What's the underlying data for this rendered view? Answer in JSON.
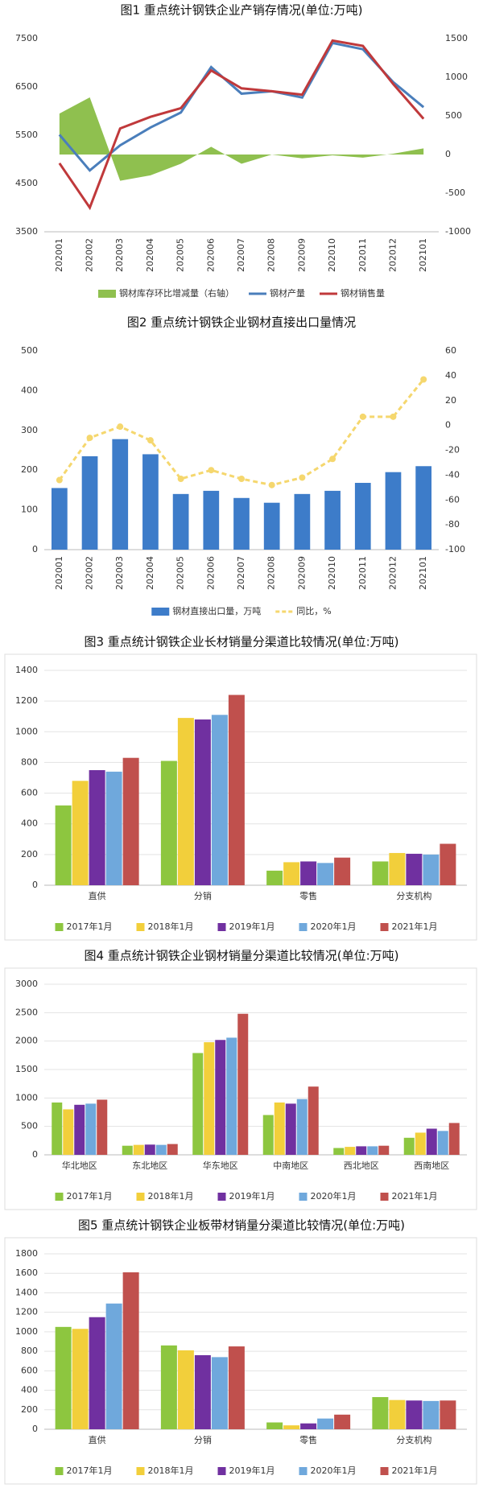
{
  "chart_data": [
    {
      "type": "combo",
      "title": "图1 重点统计钢铁企业产销存情况(单位:万吨)",
      "categories": [
        "202001",
        "202002",
        "202003",
        "202004",
        "202005",
        "202006",
        "202007",
        "202008",
        "202009",
        "202010",
        "202011",
        "202012",
        "202101"
      ],
      "ylim": [
        3500,
        7500
      ],
      "yticks": [
        3500,
        4500,
        5500,
        6500,
        7500
      ],
      "y2lim": [
        -1000,
        1500
      ],
      "y2ticks": [
        -1000,
        -500,
        0,
        500,
        1000,
        1500
      ],
      "series": [
        {
          "name": "钢材库存环比增减量（右轴）",
          "type": "area",
          "axis": "y2",
          "color": "#8fc04f",
          "values": [
            530,
            740,
            -340,
            -270,
            -120,
            100,
            -120,
            0,
            -50,
            -10,
            -40,
            10,
            80
          ]
        },
        {
          "name": "钢材产量",
          "type": "line",
          "color": "#4a7ebb",
          "values": [
            5510,
            4770,
            5290,
            5660,
            5970,
            6910,
            6360,
            6410,
            6280,
            7410,
            7280,
            6600,
            6080
          ]
        },
        {
          "name": "钢材销售量",
          "type": "line",
          "color": "#c0393b",
          "values": [
            4920,
            4000,
            5640,
            5880,
            6060,
            6840,
            6470,
            6410,
            6340,
            7460,
            7350,
            6560,
            5840
          ]
        }
      ]
    },
    {
      "type": "combo",
      "title": "图2 重点统计钢铁企业钢材直接出口量情况",
      "categories": [
        "202001",
        "202002",
        "202003",
        "202004",
        "202005",
        "202006",
        "202007",
        "202008",
        "202009",
        "202010",
        "202011",
        "202012",
        "202101"
      ],
      "ylim": [
        0,
        500
      ],
      "yticks": [
        0,
        100,
        200,
        300,
        400,
        500
      ],
      "y2lim": [
        -100,
        60
      ],
      "y2ticks": [
        -100,
        -80,
        -60,
        -40,
        -20,
        0,
        20,
        40,
        60
      ],
      "series": [
        {
          "name": "钢材直接出口量，万吨",
          "type": "bar",
          "color": "#3d7cc9",
          "values": [
            155,
            235,
            278,
            240,
            140,
            148,
            130,
            118,
            140,
            148,
            168,
            195,
            210
          ]
        },
        {
          "name": "同比，%",
          "type": "line",
          "axis": "y2",
          "color": "#f5d76e",
          "line_style": "dashed",
          "markers": true,
          "values": [
            -44,
            -10,
            -1,
            -12,
            -43,
            -36,
            -43,
            -48,
            -42,
            -27,
            7,
            7,
            37
          ]
        }
      ]
    },
    {
      "type": "bar",
      "title": "图3 重点统计钢铁企业长材销量分渠道比较情况(单位:万吨)",
      "grid": true,
      "categories": [
        "直供",
        "分销",
        "零售",
        "分支机构"
      ],
      "ylim": [
        0,
        1400
      ],
      "yticks": [
        0,
        200,
        400,
        600,
        800,
        1000,
        1200,
        1400
      ],
      "series": [
        {
          "name": "2017年1月",
          "color": "#8dc63f",
          "values": [
            520,
            810,
            95,
            155
          ]
        },
        {
          "name": "2018年1月",
          "color": "#f2cf3b",
          "values": [
            680,
            1090,
            150,
            210
          ]
        },
        {
          "name": "2019年1月",
          "color": "#7030a0",
          "values": [
            750,
            1080,
            155,
            205
          ]
        },
        {
          "name": "2020年1月",
          "color": "#6fa8dc",
          "values": [
            740,
            1110,
            145,
            200
          ]
        },
        {
          "name": "2021年1月",
          "color": "#c0504d",
          "values": [
            830,
            1240,
            180,
            270
          ]
        }
      ]
    },
    {
      "type": "bar",
      "title": "图4 重点统计钢铁企业钢材销量分渠道比较情况(单位:万吨)",
      "grid": true,
      "categories": [
        "华北地区",
        "东北地区",
        "华东地区",
        "中南地区",
        "西北地区",
        "西南地区"
      ],
      "ylim": [
        0,
        3000
      ],
      "yticks": [
        0,
        500,
        1000,
        1500,
        2000,
        2500,
        3000
      ],
      "series": [
        {
          "name": "2017年1月",
          "color": "#8dc63f",
          "values": [
            920,
            160,
            1790,
            700,
            120,
            300
          ]
        },
        {
          "name": "2018年1月",
          "color": "#f2cf3b",
          "values": [
            800,
            175,
            1980,
            920,
            140,
            390
          ]
        },
        {
          "name": "2019年1月",
          "color": "#7030a0",
          "values": [
            880,
            180,
            2020,
            900,
            150,
            460
          ]
        },
        {
          "name": "2020年1月",
          "color": "#6fa8dc",
          "values": [
            900,
            175,
            2060,
            980,
            150,
            420
          ]
        },
        {
          "name": "2021年1月",
          "color": "#c0504d",
          "values": [
            970,
            190,
            2480,
            1200,
            160,
            560
          ]
        }
      ]
    },
    {
      "type": "bar",
      "title": "图5 重点统计钢铁企业板带材销量分渠道比较情况(单位:万吨)",
      "grid": true,
      "categories": [
        "直供",
        "分销",
        "零售",
        "分支机构"
      ],
      "ylim": [
        0,
        1800
      ],
      "yticks": [
        0,
        200,
        400,
        600,
        800,
        1000,
        1200,
        1400,
        1600,
        1800
      ],
      "series": [
        {
          "name": "2017年1月",
          "color": "#8dc63f",
          "values": [
            1050,
            860,
            70,
            330
          ]
        },
        {
          "name": "2018年1月",
          "color": "#f2cf3b",
          "values": [
            1030,
            810,
            40,
            300
          ]
        },
        {
          "name": "2019年1月",
          "color": "#7030a0",
          "values": [
            1150,
            760,
            60,
            295
          ]
        },
        {
          "name": "2020年1月",
          "color": "#6fa8dc",
          "values": [
            1290,
            740,
            110,
            290
          ]
        },
        {
          "name": "2021年1月",
          "color": "#c0504d",
          "values": [
            1610,
            850,
            150,
            295
          ]
        }
      ]
    }
  ]
}
